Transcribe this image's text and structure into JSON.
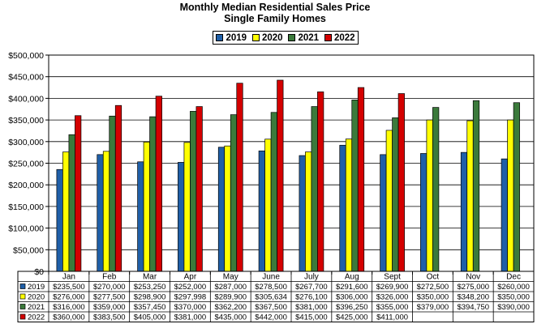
{
  "title_line1": "Monthly Median Residential Sales Price",
  "title_line2": "Single Family Homes",
  "colors": {
    "2019": "#1f5fa8",
    "2020": "#ffff00",
    "2021": "#3b7a3b",
    "2022": "#d40000",
    "plot_bg": "#ffffff",
    "grid": "#000000"
  },
  "chart_data": {
    "type": "bar",
    "title": "Monthly Median Residential Sales Price\nSingle Family Homes",
    "categories": [
      "Jan",
      "Feb",
      "Mar",
      "Apr",
      "May",
      "June",
      "July",
      "Aug",
      "Sept",
      "Oct",
      "Nov",
      "Dec"
    ],
    "ylim": [
      0,
      500000
    ],
    "yticks": [
      0,
      50000,
      100000,
      150000,
      200000,
      250000,
      300000,
      350000,
      400000,
      450000,
      500000
    ],
    "ytick_labels": [
      "$0",
      "$50,000",
      "$100,000",
      "$150,000",
      "$200,000",
      "$250,000",
      "$300,000",
      "$350,000",
      "$400,000",
      "$450,000",
      "$500,000"
    ],
    "grid": true,
    "legend_position": "top-center",
    "series": [
      {
        "name": "2019",
        "values": [
          235500,
          270000,
          253250,
          252000,
          287000,
          278500,
          267700,
          291600,
          269900,
          272500,
          275000,
          260000
        ],
        "labels": [
          "$235,500",
          "$270,000",
          "$253,250",
          "$252,000",
          "$287,000",
          "$278,500",
          "$267,700",
          "$291,600",
          "$269,900",
          "$272,500",
          "$275,000",
          "$260,000"
        ]
      },
      {
        "name": "2020",
        "values": [
          276000,
          277500,
          298900,
          297998,
          289900,
          305634,
          276100,
          306000,
          326000,
          350000,
          348200,
          350000
        ],
        "labels": [
          "$276,000",
          "$277,500",
          "$298,900",
          "$297,998",
          "$289,900",
          "$305,634",
          "$276,100",
          "$306,000",
          "$326,000",
          "$350,000",
          "$348,200",
          "$350,000"
        ]
      },
      {
        "name": "2021",
        "values": [
          316000,
          359000,
          357450,
          370000,
          362200,
          367500,
          381000,
          396250,
          355000,
          379000,
          394750,
          390000
        ],
        "labels": [
          "$316,000",
          "$359,000",
          "$357,450",
          "$370,000",
          "$362,200",
          "$367,500",
          "$381,000",
          "$396,250",
          "$355,000",
          "$379,000",
          "$394,750",
          "$390,000"
        ]
      },
      {
        "name": "2022",
        "values": [
          360000,
          383500,
          405000,
          381000,
          435000,
          442000,
          415000,
          425000,
          411000,
          null,
          null,
          null
        ],
        "labels": [
          "$360,000",
          "$383,500",
          "$405,000",
          "$381,000",
          "$435,000",
          "$442,000",
          "$415,000",
          "$425,000",
          "$411,000",
          "",
          "",
          ""
        ]
      }
    ]
  }
}
